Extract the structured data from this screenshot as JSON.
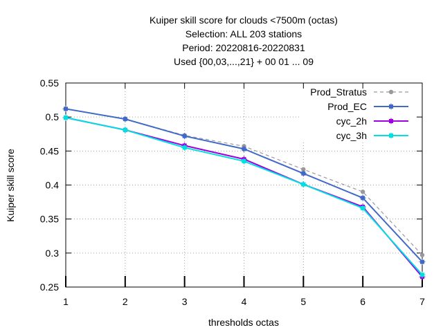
{
  "chart_data": {
    "type": "line",
    "title_lines": [
      "Kuiper skill score  for clouds <7500m (octas)",
      "Selection: ALL    203 stations",
      "Period: 20220816-20220831",
      "Used {00,03,...,21} + 00 01 ... 09"
    ],
    "xlabel": "thresholds octas",
    "ylabel": "Kuiper skill score",
    "x": [
      1,
      2,
      3,
      4,
      5,
      6,
      7
    ],
    "xticks": [
      "1",
      "2",
      "3",
      "4",
      "5",
      "6",
      "7"
    ],
    "xlim": [
      1,
      7
    ],
    "ylim": [
      0.25,
      0.55
    ],
    "yticks": [
      0.25,
      0.3,
      0.35,
      0.4,
      0.45,
      0.5,
      0.55
    ],
    "ytick_labels": [
      "0.25",
      "0.3",
      "0.35",
      "0.4",
      "0.45",
      "0.5",
      "0.55"
    ],
    "grid": true,
    "legend_position": "top-right",
    "series": [
      {
        "name": "Prod_Stratus",
        "color": "#999999",
        "dashed": true,
        "marker": "circle",
        "values": [
          0.512,
          0.497,
          0.473,
          0.457,
          0.423,
          0.39,
          0.297
        ]
      },
      {
        "name": "Prod_EC",
        "color": "#4169c8",
        "dashed": false,
        "marker": "square",
        "values": [
          0.512,
          0.497,
          0.472,
          0.453,
          0.417,
          0.381,
          0.287
        ]
      },
      {
        "name": "cyc_2h",
        "color": "#a000e0",
        "dashed": false,
        "marker": "square",
        "values": [
          0.499,
          0.481,
          0.458,
          0.438,
          0.401,
          0.368,
          0.265
        ]
      },
      {
        "name": "cyc_3h",
        "color": "#00e0e0",
        "dashed": false,
        "marker": "square",
        "values": [
          0.499,
          0.481,
          0.455,
          0.435,
          0.401,
          0.366,
          0.268
        ]
      }
    ]
  }
}
